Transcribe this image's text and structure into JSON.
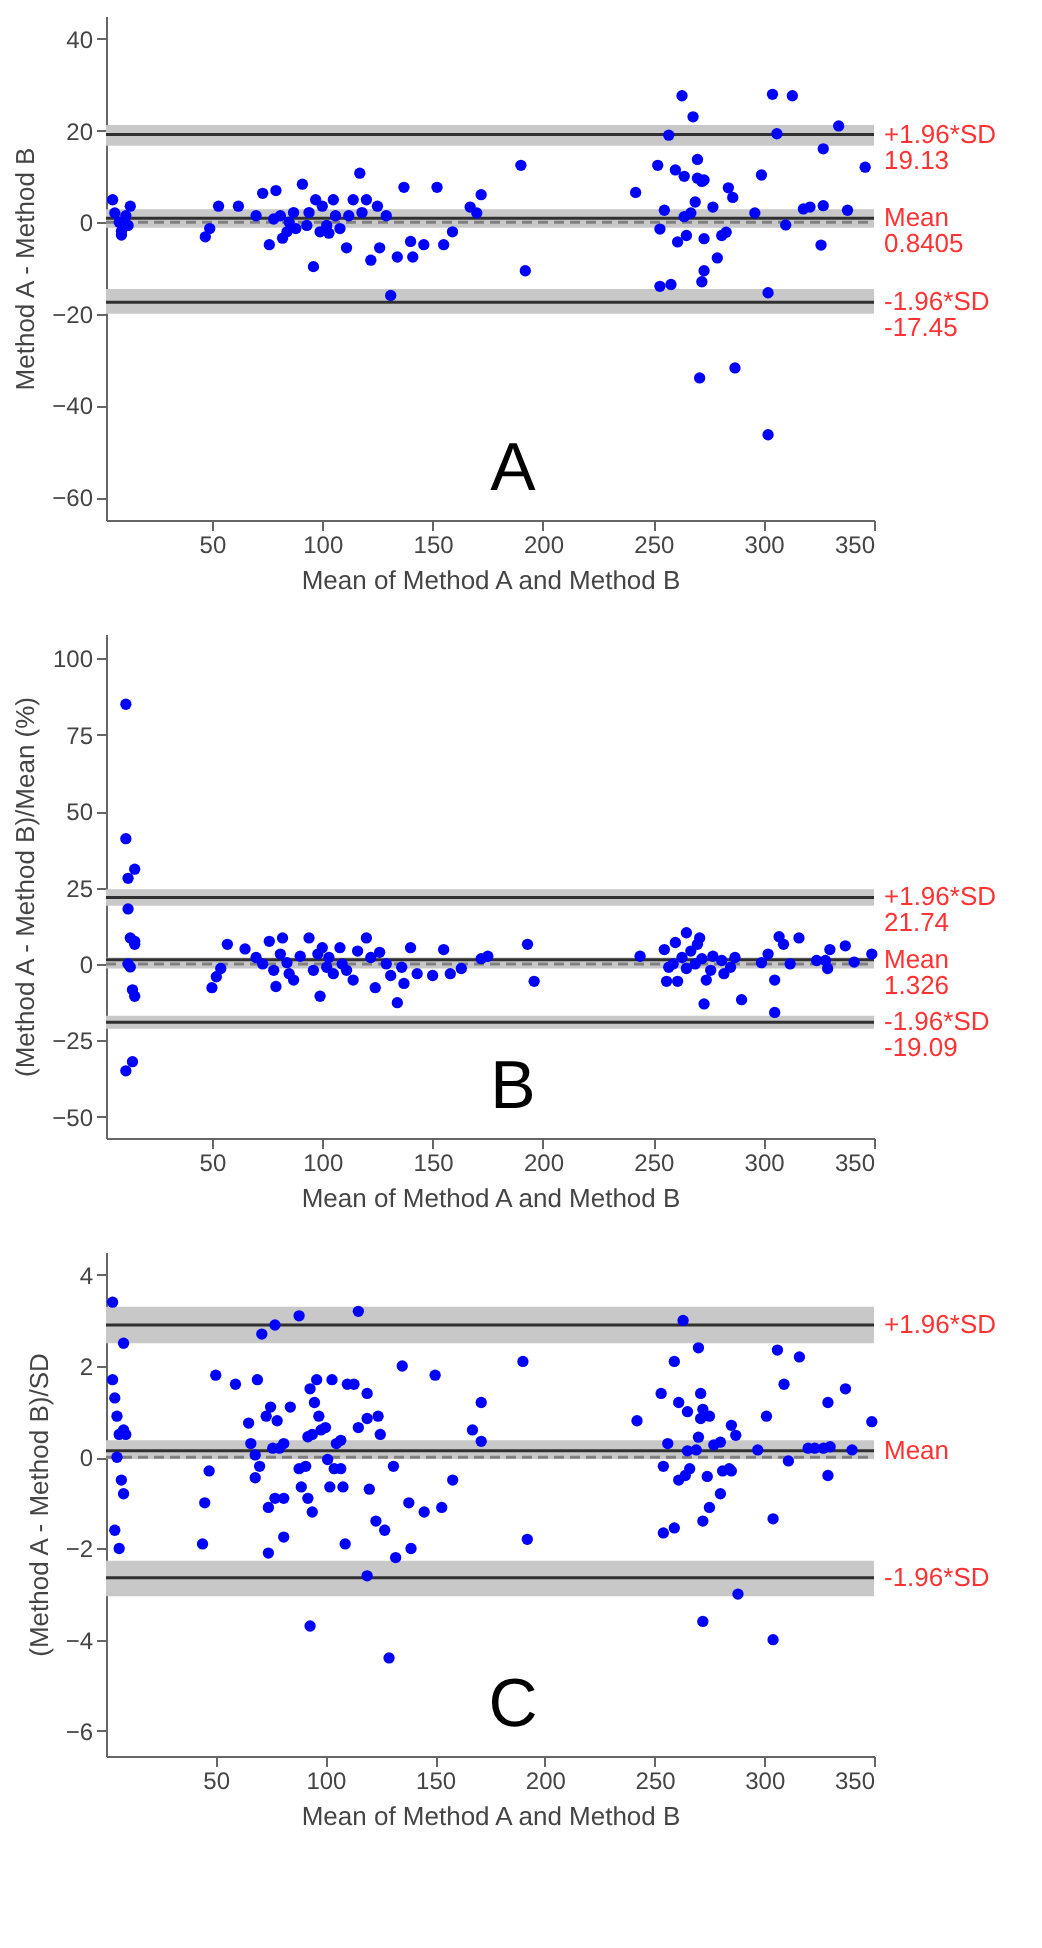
{
  "chart_data": [
    {
      "type": "scatter",
      "xlabel": "Mean of Method A and Method B",
      "ylabel": "Method A - Method B",
      "color": "#0000ff",
      "marker": "circle",
      "grid": false,
      "x": [
        5,
        6,
        8,
        9,
        11,
        13,
        9,
        12,
        47,
        49,
        53,
        62,
        70,
        73,
        76,
        79,
        78,
        81,
        82,
        84,
        85,
        87,
        88,
        91,
        93,
        94,
        96,
        97,
        99,
        100,
        102,
        103,
        105,
        106,
        108,
        111,
        112,
        114,
        117,
        118,
        120,
        122,
        125,
        126,
        129,
        131,
        134,
        137,
        140,
        141,
        146,
        152,
        155,
        159,
        167,
        170,
        172,
        190,
        192,
        242,
        252,
        253,
        253,
        255,
        257,
        258,
        260,
        261,
        263,
        264,
        264,
        265,
        267,
        268,
        269,
        270,
        270,
        271,
        272,
        272,
        273,
        273,
        273,
        277,
        279,
        281,
        283,
        284,
        286,
        287,
        296,
        299,
        302,
        302,
        304,
        306,
        310,
        313,
        318,
        321,
        326,
        327,
        327,
        334,
        338,
        346
      ],
      "values": [
        4.9,
        2,
        0,
        -2,
        1.4,
        3.5,
        -2.8,
        -0.7,
        -3.2,
        -1.4,
        3.5,
        3.5,
        1.4,
        6.3,
        -4.9,
        6.9,
        0.7,
        1.4,
        -3.5,
        -2.1,
        0,
        2.1,
        -1.4,
        8.3,
        -0.7,
        2.1,
        -9.7,
        4.9,
        -2.1,
        3.5,
        -0.7,
        -2.4,
        4.9,
        1.4,
        -1.4,
        -5.6,
        1.4,
        4.9,
        10.7,
        2.1,
        4.9,
        -8.3,
        3.5,
        -5.6,
        1.4,
        -16,
        -7.6,
        7.6,
        -4.2,
        -7.6,
        -4.9,
        7.6,
        -4.9,
        -2.1,
        3.3,
        2,
        6,
        12.4,
        -10.6,
        6.5,
        12.4,
        -1.5,
        -14,
        2.6,
        19,
        -13.6,
        11.4,
        -4.3,
        27.6,
        1.2,
        10,
        -2.9,
        2,
        23,
        4.4,
        13.7,
        9.6,
        -34,
        -13,
        8.9,
        9.2,
        -10.6,
        -3.6,
        3.3,
        -7.8,
        -2.9,
        -2.2,
        7.5,
        5.4,
        -31.8,
        2,
        10.3,
        -15.4,
        -46.4,
        27.9,
        19.3,
        -0.6,
        27.6,
        2.9,
        3.3,
        -5,
        16,
        3.6,
        21,
        2.6,
        12
      ],
      "xlim": [
        2,
        350
      ],
      "xticks": [
        50,
        100,
        150,
        200,
        250,
        300,
        350
      ],
      "ylim": [
        -65,
        45
      ],
      "yticks": [
        -60,
        -40,
        -20,
        0,
        20,
        40
      ],
      "bands": [
        {
          "axis": "y",
          "from": 16.7,
          "to": 21.2,
          "color": "#c8c8c8"
        },
        {
          "axis": "y",
          "from": -1.2,
          "to": 2.8,
          "color": "#c8c8c8"
        },
        {
          "axis": "y",
          "from": -20,
          "to": -14.6,
          "color": "#c8c8c8"
        }
      ],
      "ref_lines": [
        {
          "axis": "y",
          "value": 0,
          "line_style": "dashed",
          "color": "#808080"
        },
        {
          "axis": "y",
          "value": 19.13,
          "label": "+1.96*SD\n19.13",
          "color": "#303030"
        },
        {
          "axis": "y",
          "value": 0.8405,
          "label": "Mean\n0.8405",
          "color": "#303030"
        },
        {
          "axis": "y",
          "value": -17.45,
          "label": "-1.96*SD\n-17.45",
          "color": "#303030"
        }
      ],
      "annotations": [
        "A"
      ]
    },
    {
      "type": "scatter",
      "xlabel": "Mean of Method A and Method B",
      "ylabel": "(Method A - Method B)/Mean (%)",
      "color": "#0000ff",
      "marker": "circle",
      "grid": false,
      "x": [
        11,
        11,
        12,
        15,
        12,
        13,
        15,
        15,
        12,
        13,
        14,
        15,
        14,
        11,
        50,
        52,
        54,
        57,
        65,
        70,
        73,
        76,
        78,
        79,
        81,
        82,
        84,
        85,
        87,
        90,
        94,
        96,
        98,
        99,
        100,
        102,
        103,
        105,
        108,
        109,
        111,
        114,
        116,
        120,
        122,
        124,
        126,
        129,
        131,
        134,
        136,
        137,
        140,
        143,
        150,
        155,
        158,
        163,
        172,
        175,
        193,
        196,
        244,
        255,
        256,
        257,
        259,
        260,
        261,
        263,
        265,
        265,
        267,
        269,
        270,
        271,
        272,
        273,
        274,
        276,
        277,
        281,
        282,
        285,
        287,
        290,
        299,
        302,
        305,
        305,
        307,
        309,
        312,
        316,
        324,
        328,
        329,
        330,
        337,
        341,
        349
      ],
      "values": [
        85,
        41,
        28,
        31,
        18,
        8.5,
        7.4,
        6.4,
        0,
        -1,
        -8.5,
        -10.6,
        -32,
        -35,
        -7.8,
        -4.2,
        -1.5,
        6.4,
        4.9,
        2.1,
        0,
        7.4,
        -2.1,
        -7.4,
        3.2,
        8.5,
        0.4,
        -3.2,
        -5.3,
        2.5,
        8.5,
        -2.1,
        3.2,
        -10.6,
        5.3,
        -1.1,
        2.1,
        -3.2,
        5.3,
        0,
        -2.1,
        -5.3,
        4.2,
        8.5,
        2.1,
        -7.8,
        3.8,
        0,
        -3.8,
        -12.7,
        -1.1,
        -6.4,
        5.3,
        -3.2,
        -3.8,
        4.7,
        -3.2,
        -1.5,
        1.7,
        2.5,
        6.4,
        -5.7,
        2.5,
        4.7,
        -5.7,
        -1.1,
        0,
        7,
        -5.7,
        2.1,
        10.2,
        -1.5,
        4.2,
        0,
        6.4,
        8.5,
        1.7,
        -13.1,
        -5.3,
        -2.1,
        2.5,
        1.1,
        -3.2,
        -1.1,
        2.1,
        -11.7,
        0.4,
        3.2,
        -15.9,
        -5.3,
        8.9,
        6.4,
        0,
        8.5,
        1.1,
        1.1,
        -1.5,
        4.7,
        5.9,
        0.6,
        3.2
      ],
      "xlim": [
        2,
        350
      ],
      "xticks": [
        50,
        100,
        150,
        200,
        250,
        300,
        350
      ],
      "ylim": [
        -57,
        108
      ],
      "yticks": [
        -50,
        -25,
        0,
        25,
        50,
        75,
        100
      ],
      "bands": [
        {
          "axis": "y",
          "from": 19,
          "to": 24.4,
          "color": "#c8c8c8"
        },
        {
          "axis": "y",
          "from": -1.5,
          "to": 2.1,
          "color": "#c8c8c8"
        },
        {
          "axis": "y",
          "from": -21.2,
          "to": -17,
          "color": "#c8c8c8"
        }
      ],
      "ref_lines": [
        {
          "axis": "y",
          "value": 0,
          "line_style": "dashed",
          "color": "#808080"
        },
        {
          "axis": "y",
          "value": 21.74,
          "label": "+1.96*SD\n21.74",
          "color": "#303030"
        },
        {
          "axis": "y",
          "value": 1.326,
          "label": "Mean\n1.326",
          "color": "#303030"
        },
        {
          "axis": "y",
          "value": -19.09,
          "label": "-1.96*SD\n-19.09",
          "color": "#303030"
        }
      ],
      "annotations": [
        "B"
      ]
    },
    {
      "type": "scatter",
      "xlabel": "Mean of Method A and Method B",
      "ylabel": "(Method A - Method B)/SD",
      "color": "#0000ff",
      "marker": "circle",
      "grid": false,
      "x": [
        3,
        3,
        4,
        5,
        6,
        8,
        8,
        9,
        5,
        7,
        8,
        4,
        6,
        44,
        45,
        47,
        50,
        59,
        65,
        66,
        68,
        69,
        70,
        68,
        71,
        73,
        74,
        74,
        75,
        76,
        77,
        77,
        78,
        79,
        81,
        81,
        81,
        84,
        88,
        88,
        89,
        91,
        92,
        92,
        93,
        93,
        94,
        94,
        95,
        96,
        97,
        98,
        100,
        101,
        102,
        103,
        104,
        105,
        107,
        107,
        108,
        109,
        110,
        113,
        115,
        115,
        119,
        119,
        120,
        119,
        123,
        124,
        125,
        127,
        129,
        131,
        132,
        135,
        138,
        139,
        145,
        150,
        153,
        158,
        167,
        171,
        171,
        190,
        192,
        242,
        253,
        254,
        254,
        256,
        259,
        259,
        261,
        261,
        263,
        264,
        265,
        265,
        266,
        269,
        270,
        270,
        271,
        271,
        272,
        272,
        272,
        274,
        275,
        275,
        277,
        280,
        280,
        281,
        284,
        285,
        285,
        287,
        288,
        297,
        301,
        304,
        304,
        306,
        309,
        311,
        316,
        320,
        323,
        327,
        329,
        329,
        330,
        337,
        340,
        349
      ],
      "values": [
        3.4,
        1.7,
        1.3,
        0.9,
        0.5,
        2.5,
        0.6,
        0.5,
        0,
        -0.5,
        -0.8,
        -1.6,
        -2,
        -1.9,
        -1,
        -0.3,
        1.8,
        1.6,
        0.75,
        0.3,
        0.05,
        1.7,
        -0.2,
        -0.45,
        2.7,
        0.9,
        -2.1,
        -1.1,
        1.1,
        0.2,
        2.9,
        -0.9,
        0.8,
        0.2,
        0.3,
        -0.9,
        -1.75,
        1.1,
        3.1,
        -0.25,
        -0.65,
        -0.2,
        0.45,
        -0.9,
        1.5,
        -3.7,
        -1.2,
        0.5,
        1.2,
        1.7,
        0.9,
        0.6,
        0.65,
        -0.05,
        -0.65,
        1.7,
        -0.25,
        0.3,
        -0.25,
        0.37,
        -0.65,
        -1.9,
        1.6,
        1.6,
        0.65,
        3.2,
        0.85,
        1.4,
        -0.7,
        -2.6,
        -1.4,
        0.9,
        0.5,
        -1.6,
        -4.4,
        -0.2,
        -2.2,
        2,
        -1,
        -2,
        -1.2,
        1.8,
        -1.1,
        -0.5,
        0.6,
        0.35,
        1.2,
        2.1,
        -1.8,
        0.8,
        1.4,
        -0.2,
        -1.66,
        0.3,
        2.1,
        -1.55,
        1.2,
        -0.5,
        3,
        -0.4,
        1,
        0.14,
        -0.25,
        0.16,
        2.4,
        0.44,
        1.4,
        0.85,
        1.05,
        -1.4,
        -3.6,
        -0.42,
        -1.1,
        0.9,
        0.27,
        -0.8,
        0.33,
        -0.3,
        -0.25,
        0.7,
        -0.3,
        0.48,
        -3,
        0.16,
        0.9,
        -1.35,
        -4,
        2.35,
        1.6,
        -0.08,
        2.2,
        0.2,
        0.2,
        0.2,
        -0.4,
        1.2,
        0.23,
        1.5,
        0.16,
        0.78
      ],
      "xlim": [
        0,
        350
      ],
      "xticks": [
        50,
        100,
        150,
        200,
        250,
        300,
        350
      ],
      "ylim": [
        -6.55,
        4.5
      ],
      "yticks": [
        -6,
        -4,
        -2,
        0,
        2,
        4
      ],
      "bands": [
        {
          "axis": "y",
          "from": 2.5,
          "to": 3.3,
          "color": "#c8c8c8"
        },
        {
          "axis": "y",
          "from": -0.04,
          "to": 0.37,
          "color": "#c8c8c8"
        },
        {
          "axis": "y",
          "from": -3.05,
          "to": -2.27,
          "color": "#c8c8c8"
        }
      ],
      "ref_lines": [
        {
          "axis": "y",
          "value": 0,
          "line_style": "dashed",
          "color": "#808080"
        },
        {
          "axis": "y",
          "value": 2.9,
          "label": "+1.96*SD",
          "color": "#303030"
        },
        {
          "axis": "y",
          "value": 0.14,
          "label": "Mean",
          "color": "#303030"
        },
        {
          "axis": "y",
          "value": -2.64,
          "label": "-1.96*SD",
          "color": "#303030"
        }
      ],
      "annotations": [
        "C"
      ]
    }
  ]
}
